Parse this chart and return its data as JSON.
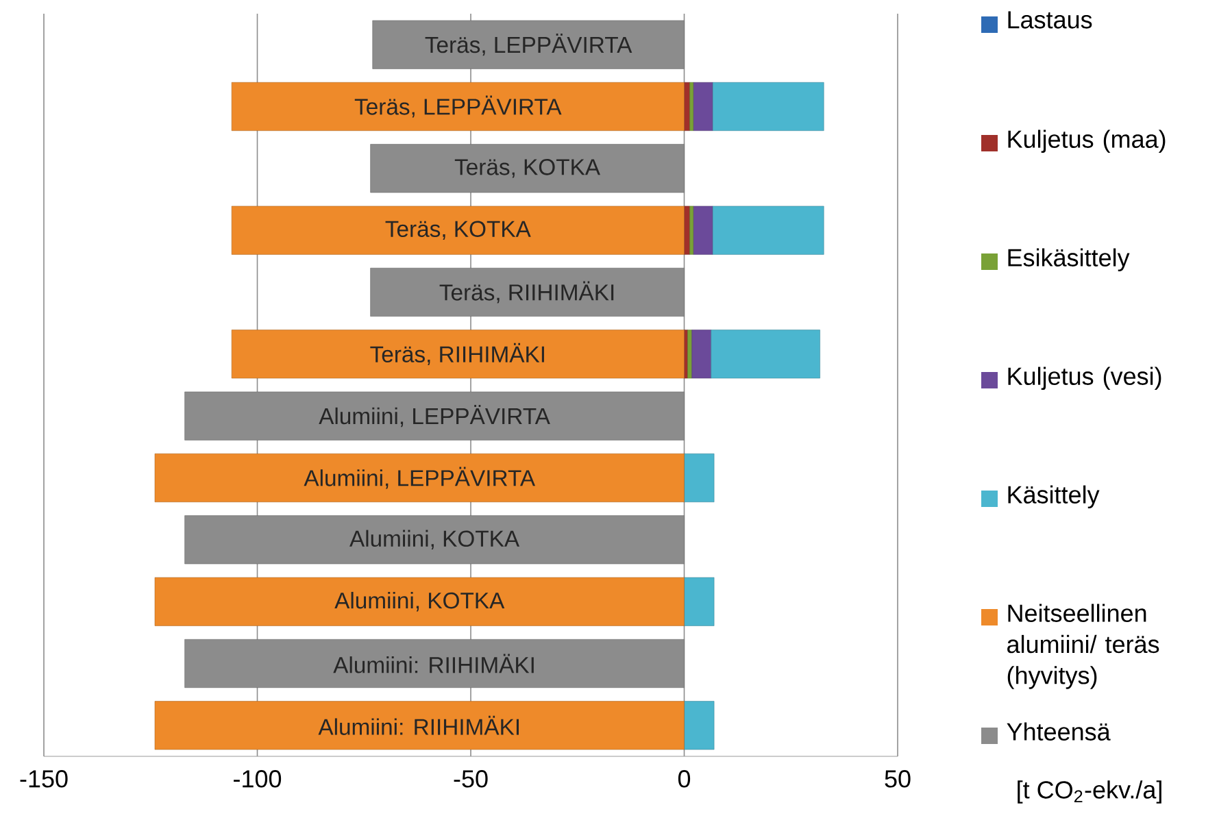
{
  "chart_data": {
    "type": "bar",
    "orientation": "horizontal",
    "stacked": true,
    "categories": [
      "Teräs, LEPPÄVIRTA",
      "Teräs, LEPPÄVIRTA",
      "Teräs, KOTKA",
      "Teräs, KOTKA",
      "Teräs, RIIHIMÄKI",
      "Teräs, RIIHIMÄKI",
      "Alumiini, LEPPÄVIRTA",
      "Alumiini, LEPPÄVIRTA",
      "Alumiini, KOTKA",
      "Alumiini, KOTKA",
      "Alumiini: RIIHIMÄKI",
      "Alumiini: RIIHIMÄKI"
    ],
    "series": [
      {
        "name": "Lastaus",
        "color": "#2e6bb5",
        "values": [
          null,
          0,
          null,
          0,
          null,
          0,
          null,
          0,
          null,
          0,
          null,
          0
        ]
      },
      {
        "name": "Kuljetus (maa)",
        "color": "#a0302a",
        "values": [
          null,
          1.3,
          null,
          1.3,
          null,
          0.8,
          null,
          0,
          null,
          0,
          null,
          0
        ]
      },
      {
        "name": "Esikäsittely",
        "color": "#79a136",
        "values": [
          null,
          0.9,
          null,
          0.9,
          null,
          1,
          null,
          0,
          null,
          0,
          null,
          0
        ]
      },
      {
        "name": "Kuljetus (vesi)",
        "color": "#6b4a9a",
        "values": [
          null,
          4.5,
          null,
          4.5,
          null,
          4.5,
          null,
          0,
          null,
          0,
          null,
          0
        ]
      },
      {
        "name": "Käsittely",
        "color": "#4bb6cf",
        "values": [
          null,
          26,
          null,
          26,
          null,
          25.5,
          null,
          7,
          null,
          7,
          null,
          7
        ]
      },
      {
        "name": "Neitseellinen alumiini/ teräs (hyvitys)",
        "color": "#ee8a2a",
        "values": [
          null,
          -106,
          null,
          -106,
          null,
          -106,
          null,
          -124,
          null,
          -124,
          null,
          -124
        ]
      },
      {
        "name": "Yhteensä",
        "color": "#8c8c8c",
        "values": [
          -73,
          null,
          -73.5,
          null,
          -73.5,
          null,
          -117,
          null,
          -117,
          null,
          -117,
          null
        ]
      }
    ],
    "xlim": [
      -150,
      50
    ],
    "xticks": [
      -150,
      -100,
      -50,
      0,
      50
    ],
    "xlabel": "[t CO$_{2}$-ekv./a]",
    "grid": "x",
    "legend": "right"
  }
}
